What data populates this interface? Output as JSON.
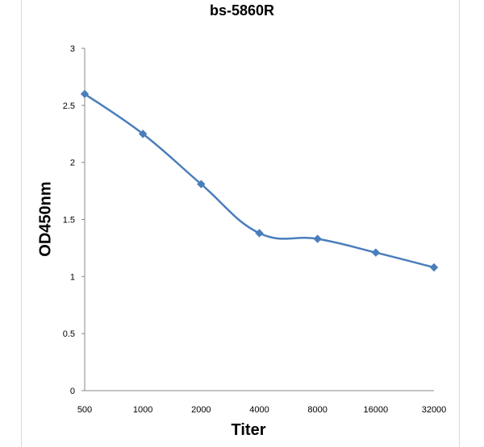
{
  "chart_data": {
    "type": "line",
    "title": "bs-5860R",
    "xlabel": "Titer",
    "ylabel": "OD450nm",
    "categories": [
      "500",
      "1000",
      "2000",
      "4000",
      "8000",
      "16000",
      "32000"
    ],
    "series": [
      {
        "values": [
          2.6,
          2.25,
          1.81,
          1.38,
          1.33,
          1.21,
          1.08
        ]
      }
    ],
    "ylim": [
      0,
      3
    ],
    "yticks": [
      "0",
      "0.5",
      "1",
      "1.5",
      "2",
      "2.5",
      "3"
    ],
    "grid": false,
    "line_color": "#4a7ebb",
    "marker": "diamond"
  }
}
